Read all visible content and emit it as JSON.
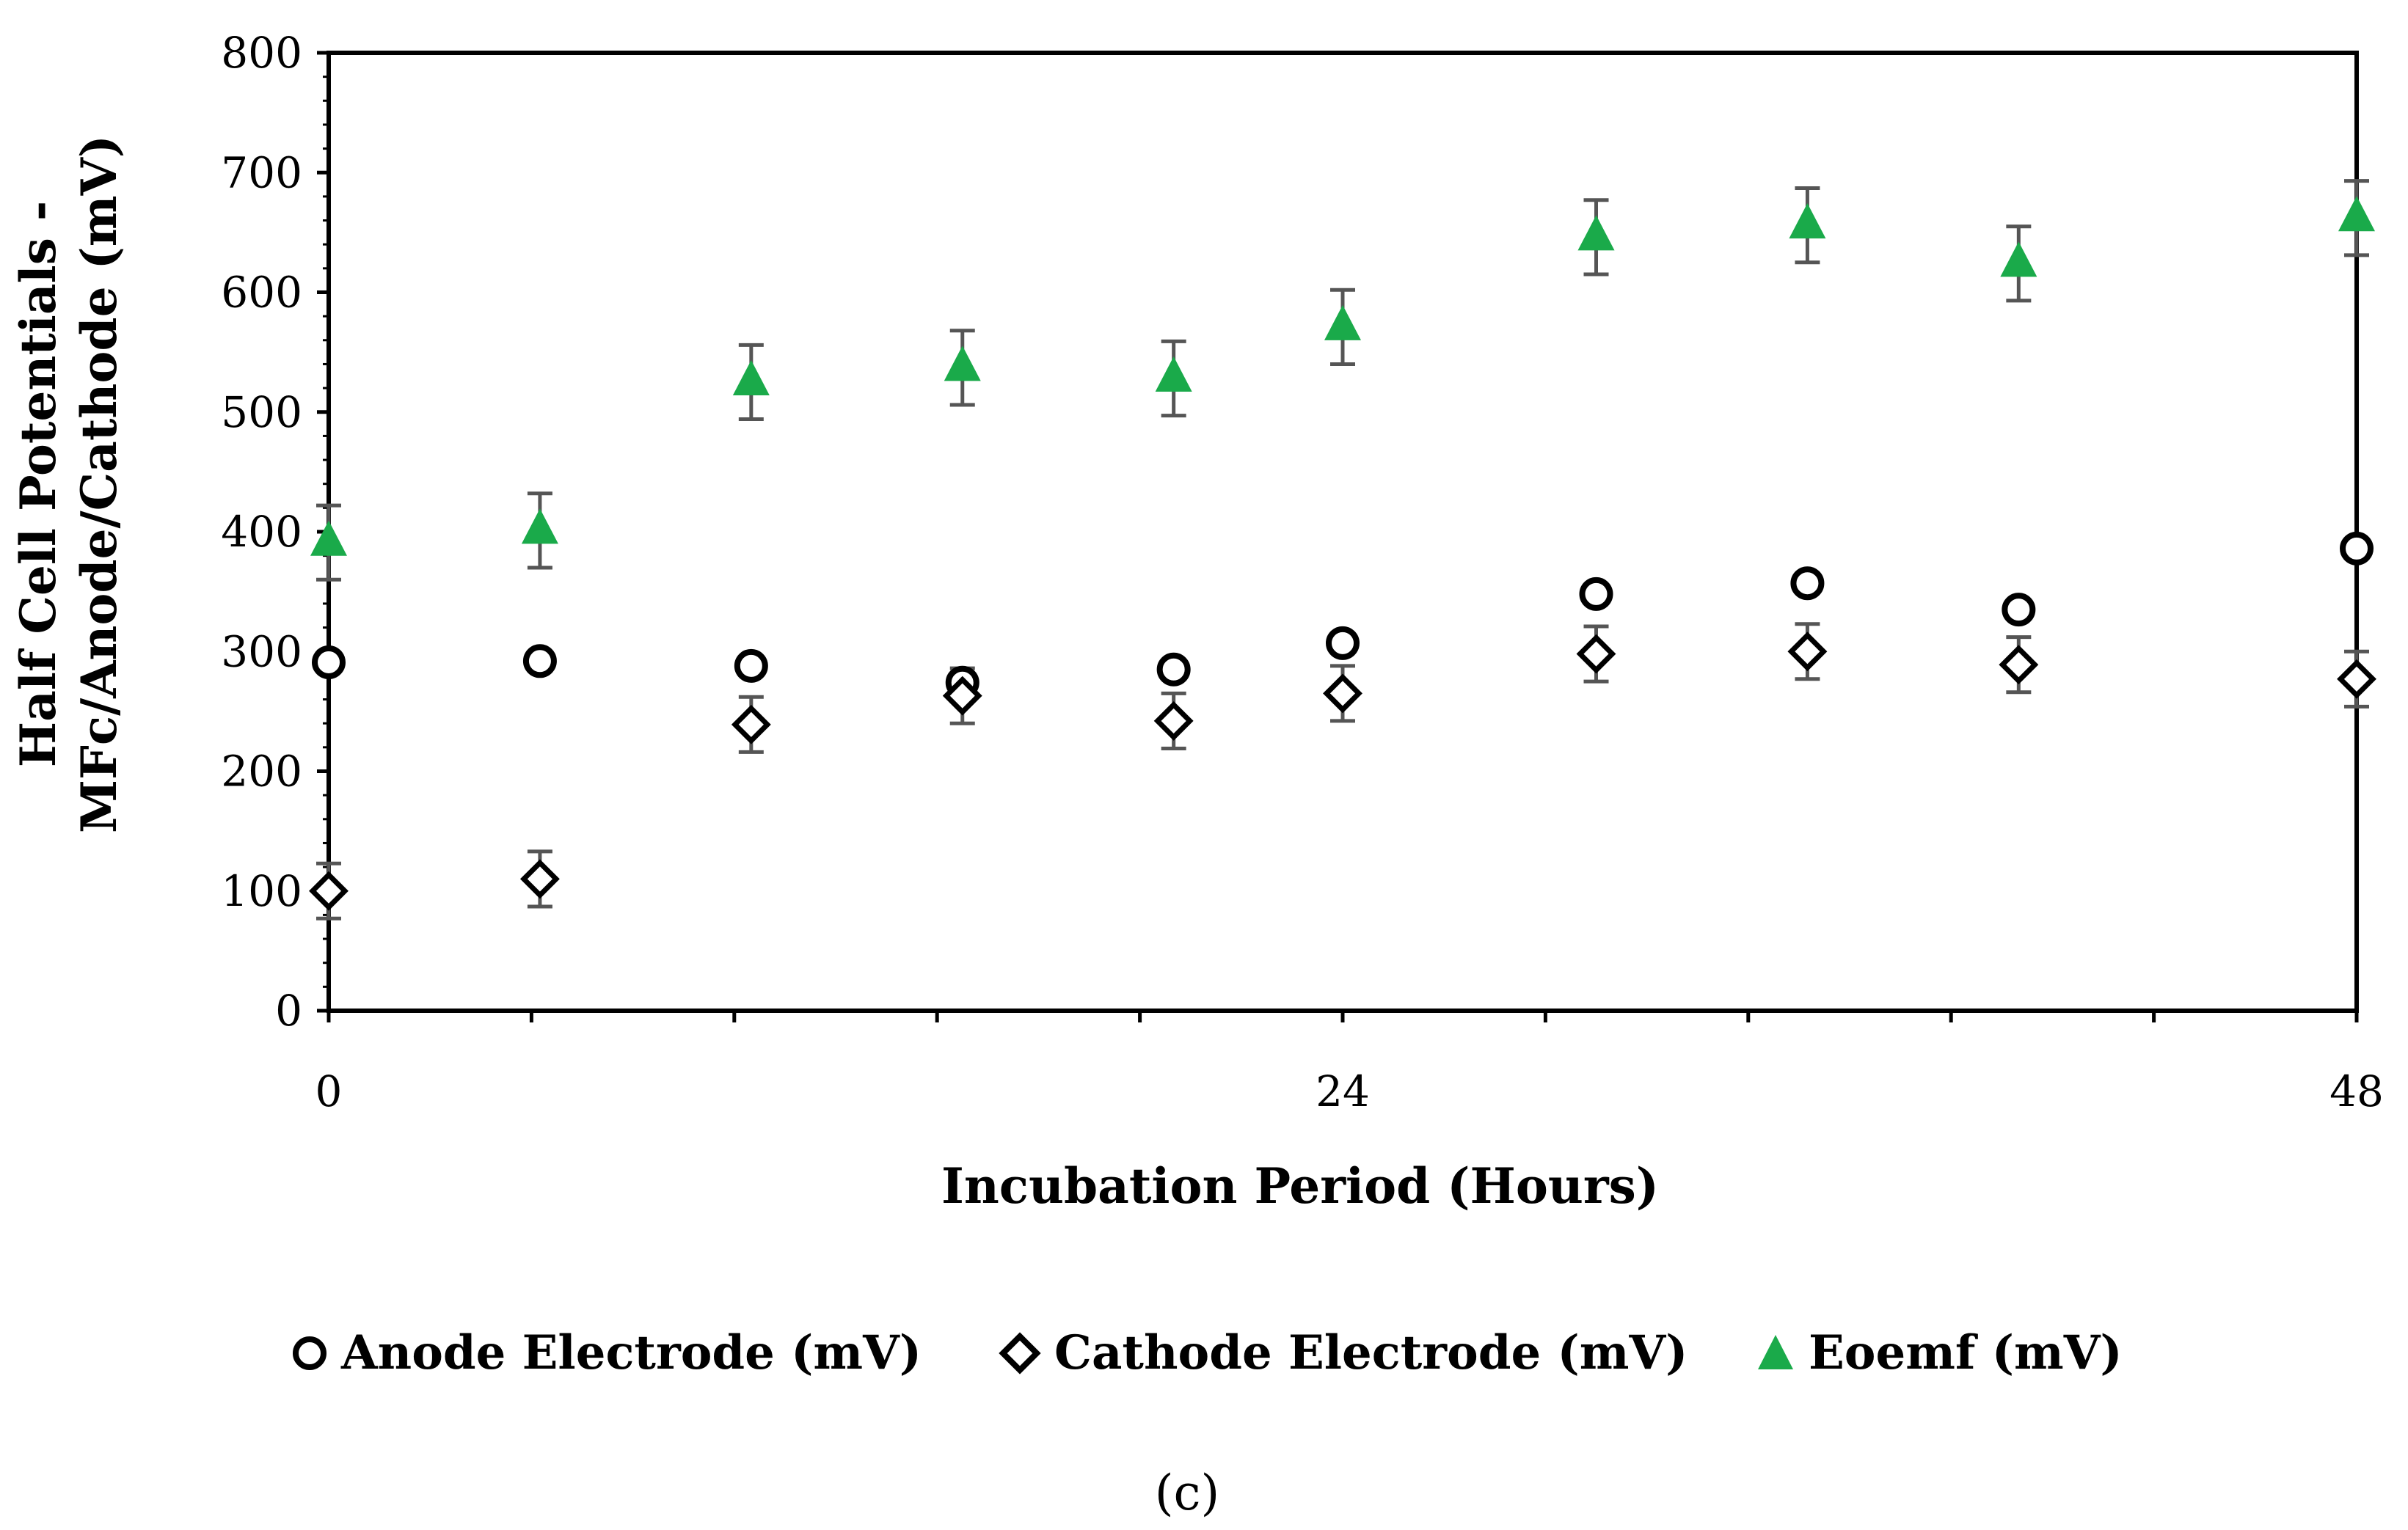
{
  "chart_data": {
    "type": "scatter",
    "title": "",
    "xlabel": "Incubation Period (Hours)",
    "ylabel_line1": "Half Cell Potentials -",
    "ylabel_line2": "MFc/Anode/Cathode (mV)",
    "xlim": [
      0,
      48
    ],
    "ylim": [
      0,
      800
    ],
    "x_ticks": [
      0,
      24,
      48
    ],
    "y_ticks": [
      0,
      100,
      200,
      300,
      400,
      500,
      600,
      700,
      800
    ],
    "x_minor_step": 4.8,
    "x": [
      0,
      5,
      10,
      15,
      20,
      24,
      30,
      35,
      40,
      48
    ],
    "series": [
      {
        "name": "Anode Electrode (mV)",
        "marker": "circle-open",
        "values": [
          291,
          292,
          288,
          274,
          285,
          307,
          348,
          357,
          335,
          386
        ],
        "error": null
      },
      {
        "name": "Cathode Electrode (mV)",
        "marker": "diamond-open",
        "values": [
          100,
          110,
          239,
          263,
          242,
          265,
          298,
          300,
          289,
          277
        ],
        "error": [
          23,
          23,
          23,
          23,
          23,
          23,
          23,
          23,
          23,
          23
        ]
      },
      {
        "name": "Eoemf (mV)",
        "marker": "triangle-filled",
        "values": [
          391,
          401,
          525,
          537,
          528,
          571,
          646,
          656,
          624,
          662
        ],
        "error": [
          31,
          31,
          31,
          31,
          31,
          31,
          31,
          31,
          31,
          31
        ]
      }
    ],
    "legend_position": "bottom",
    "caption": "(c)"
  },
  "colors": {
    "eoemf": "#1aaa4a",
    "marker_outline": "#000000",
    "error_bar": "#555555",
    "axis": "#000000"
  }
}
